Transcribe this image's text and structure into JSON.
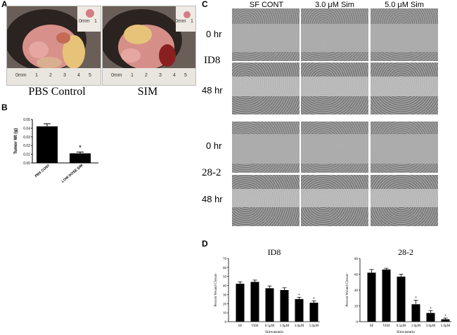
{
  "panels": {
    "a": {
      "letter": "A",
      "captions": [
        "PBS Control",
        "SIM"
      ],
      "ruler_labels": [
        "0mm",
        "1",
        "2",
        "3",
        "4",
        "5"
      ],
      "inset_ruler_labels": [
        "0mm",
        "1"
      ]
    },
    "b": {
      "letter": "B"
    },
    "c": {
      "letter": "C",
      "column_headers": [
        "SF CONT",
        "3.0 μM Sim",
        "5.0 μM Sim"
      ],
      "row_labels": [
        "0 hr",
        "48 hr",
        "0 hr",
        "48 hr"
      ],
      "cell_labels": [
        "ID8",
        "28-2"
      ]
    },
    "d": {
      "letter": "D"
    }
  },
  "chart_data": [
    {
      "type": "bar",
      "panel": "B",
      "categories": [
        "PBS CONT",
        "LOW DOSE SIM"
      ],
      "values": [
        0.042,
        0.011
      ],
      "errors": [
        0.003,
        0.0015
      ],
      "significance": [
        "",
        "*"
      ],
      "ylabel": "Tumor Wt (g)",
      "ylim": [
        0,
        0.05
      ],
      "yticks": [
        0,
        0.01,
        0.02,
        0.03,
        0.04,
        0.05
      ],
      "ytick_labels": [
        "0.00",
        "0.01",
        "0.02",
        "0.03",
        "0.04",
        "0.05"
      ],
      "color": "#000000"
    },
    {
      "type": "bar",
      "panel": "D",
      "title": "ID8",
      "categories": [
        "SF",
        "VEH",
        "0.5μM",
        "1.0μM",
        "3.0μM",
        "5.0μM"
      ],
      "values": [
        42,
        44,
        37,
        35,
        25,
        21
      ],
      "errors": [
        2,
        2,
        2.5,
        2.5,
        2,
        2
      ],
      "significance": [
        "",
        "",
        "",
        "",
        "*",
        "*"
      ],
      "xlabel": "Simvastatin",
      "ylabel": "Percent Wound Closure",
      "ylim": [
        0,
        70
      ],
      "yticks": [
        0,
        10,
        20,
        30,
        40,
        50,
        60,
        70
      ],
      "color": "#000000"
    },
    {
      "type": "bar",
      "panel": "D",
      "title": "28-2",
      "categories": [
        "SF",
        "VEH",
        "0.5μM",
        "1.0μM",
        "3.0μM",
        "5.0μM"
      ],
      "values": [
        62,
        66,
        57,
        22,
        11,
        3
      ],
      "errors": [
        4,
        1.5,
        3,
        5,
        3,
        1.5
      ],
      "significance": [
        "",
        "",
        "",
        "*",
        "*",
        "*"
      ],
      "xlabel": "Simvastatin",
      "ylabel": "Percent Wound Closure",
      "ylim": [
        0,
        80
      ],
      "yticks": [
        0,
        20,
        40,
        60,
        80
      ],
      "color": "#000000"
    }
  ]
}
